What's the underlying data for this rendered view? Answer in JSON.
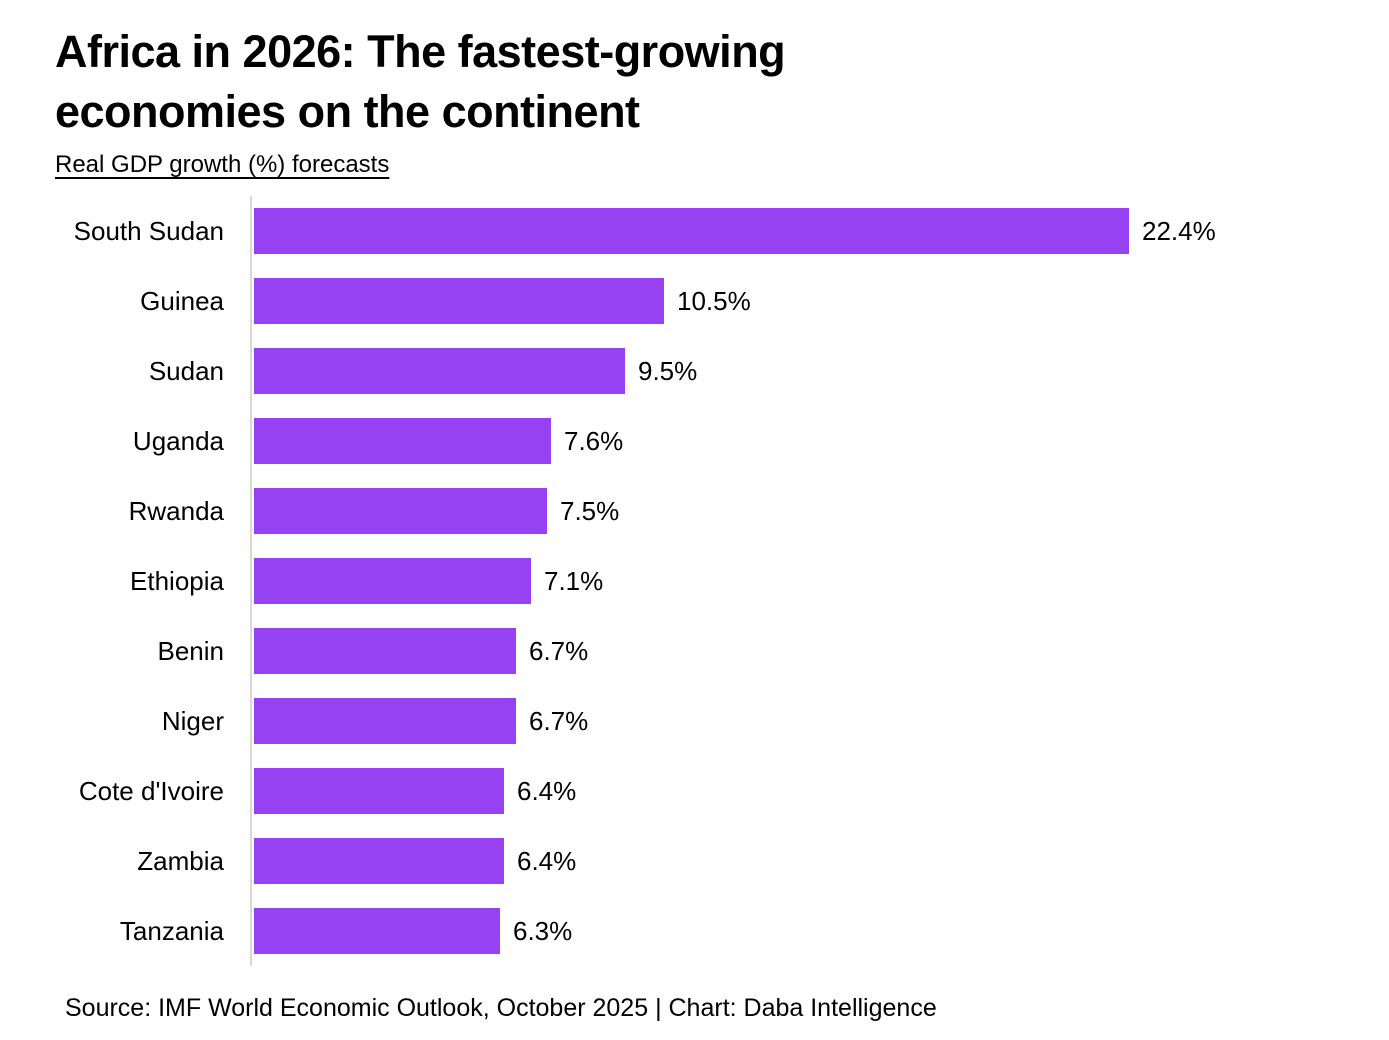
{
  "header": {
    "title": "Africa in 2026: The fastest-growing economies on the continent",
    "title_lines": [
      "Africa in 2026: The fastest-growing",
      "economies on the continent"
    ],
    "subtitle": "Real GDP growth (%) forecasts"
  },
  "footer": {
    "source": "Source: IMF World Economic Outlook, October 2025 | Chart: Daba Intelligence"
  },
  "colors": {
    "bar": "#9641f2",
    "axis": "#d8d8d8",
    "text": "#000000",
    "background": "#ffffff"
  },
  "chart_data": {
    "type": "bar",
    "orientation": "horizontal",
    "title": "Africa in 2026: The fastest-growing economies on the continent",
    "subtitle": "Real GDP growth (%) forecasts",
    "xlabel": "",
    "ylabel": "",
    "xlim": [
      0,
      22.4
    ],
    "grid": false,
    "legend": false,
    "bar_color": "#9641f2",
    "categories": [
      "South Sudan",
      "Guinea",
      "Sudan",
      "Uganda",
      "Rwanda",
      "Ethiopia",
      "Benin",
      "Niger",
      "Cote d'Ivoire",
      "Zambia",
      "Tanzania"
    ],
    "values": [
      22.4,
      10.5,
      9.5,
      7.6,
      7.5,
      7.1,
      6.7,
      6.7,
      6.4,
      6.4,
      6.3
    ],
    "value_labels": [
      "22.4%",
      "10.5%",
      "9.5%",
      "7.6%",
      "7.5%",
      "7.1%",
      "6.7%",
      "6.7%",
      "6.4%",
      "6.4%",
      "6.3%"
    ]
  }
}
